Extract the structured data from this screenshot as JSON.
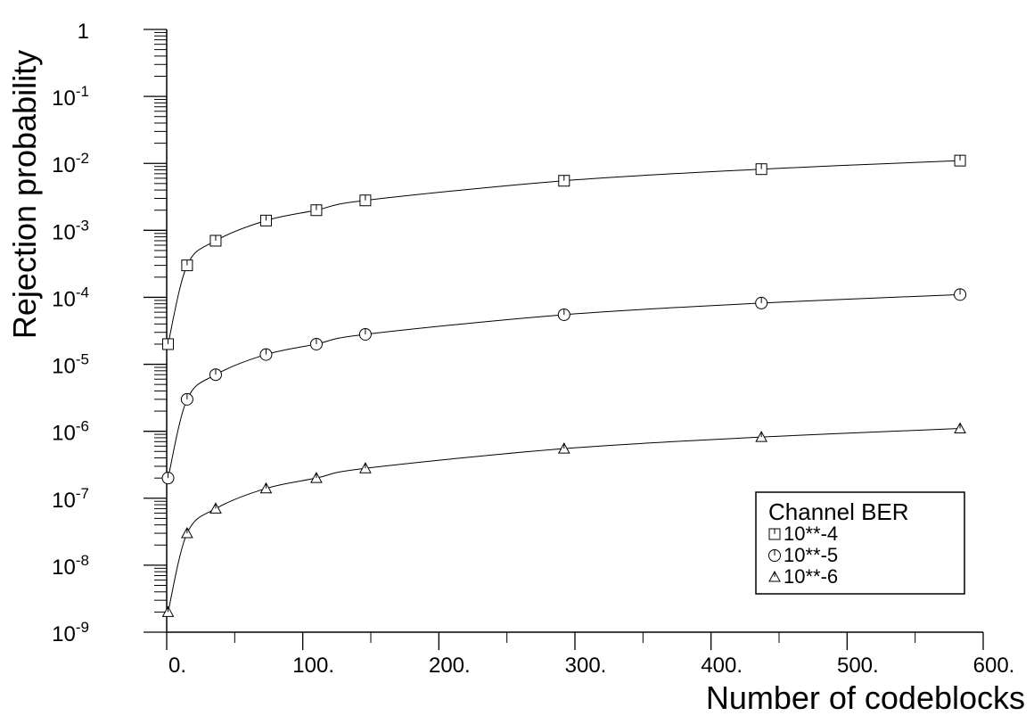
{
  "chart_data": {
    "type": "line",
    "title": "",
    "xlabel": "Number of codeblocks",
    "ylabel": "Rejection probability",
    "xlim": [
      0,
      600
    ],
    "ylim_exponent": [
      -9,
      0
    ],
    "yscale": "log",
    "x_ticks": [
      {
        "value": 0,
        "label": "0."
      },
      {
        "value": 100,
        "label": "100."
      },
      {
        "value": 200,
        "label": "200."
      },
      {
        "value": 300,
        "label": "300."
      },
      {
        "value": 400,
        "label": "400."
      },
      {
        "value": 500,
        "label": "500."
      },
      {
        "value": 600,
        "label": "600."
      }
    ],
    "y_ticks": [
      {
        "exponent": 0,
        "base": "1",
        "sup": ""
      },
      {
        "exponent": -1,
        "base": "10",
        "sup": "-1"
      },
      {
        "exponent": -2,
        "base": "10",
        "sup": "-2"
      },
      {
        "exponent": -3,
        "base": "10",
        "sup": "-3"
      },
      {
        "exponent": -4,
        "base": "10",
        "sup": "-4"
      },
      {
        "exponent": -5,
        "base": "10",
        "sup": "-5"
      },
      {
        "exponent": -6,
        "base": "10",
        "sup": "-6"
      },
      {
        "exponent": -7,
        "base": "10",
        "sup": "-7"
      },
      {
        "exponent": -8,
        "base": "10",
        "sup": "-8"
      },
      {
        "exponent": -9,
        "base": "10",
        "sup": "-9"
      }
    ],
    "x": [
      1,
      15,
      36,
      73,
      110,
      146,
      292,
      437,
      583
    ],
    "series": [
      {
        "name": "10**-4",
        "marker": "square",
        "values": [
          2e-05,
          0.0003,
          0.0007,
          0.0014,
          0.002,
          0.0028,
          0.0055,
          0.0082,
          0.011
        ]
      },
      {
        "name": "10**-5",
        "marker": "circle",
        "values": [
          2e-07,
          3e-06,
          7e-06,
          1.4e-05,
          2e-05,
          2.8e-05,
          5.5e-05,
          8.2e-05,
          0.00011
        ]
      },
      {
        "name": "10**-6",
        "marker": "triangle",
        "values": [
          2e-09,
          3e-08,
          7e-08,
          1.4e-07,
          2e-07,
          2.8e-07,
          5.5e-07,
          8.2e-07,
          1.1e-06
        ]
      }
    ],
    "grid": false,
    "legend": {
      "title": "Channel BER",
      "position": "bottom-right"
    }
  }
}
